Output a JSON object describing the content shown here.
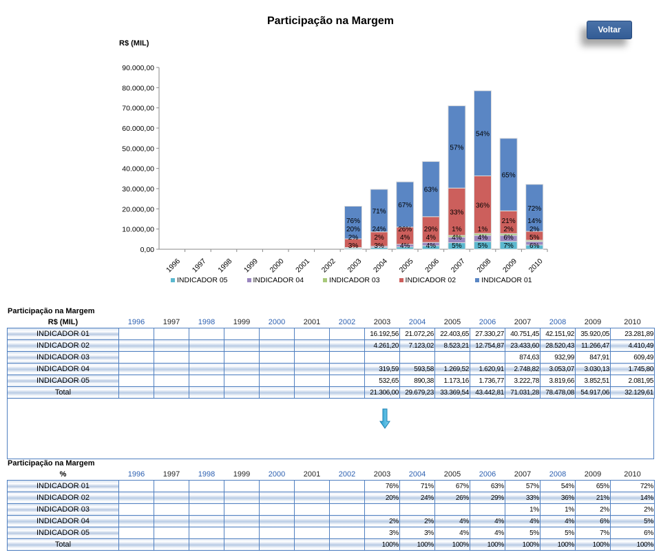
{
  "title": "Participação na Margem",
  "voltar": "Voltar",
  "chart_data": {
    "type": "bar",
    "stacked": true,
    "title": "Participação na Margem",
    "ylabel": "R$ (MIL)",
    "xlabel": "",
    "ylim": [
      0,
      90000
    ],
    "yticks": [
      "0,00",
      "10.000,00",
      "20.000,00",
      "30.000,00",
      "40.000,00",
      "50.000,00",
      "60.000,00",
      "70.000,00",
      "80.000,00",
      "90.000,00"
    ],
    "categories": [
      "1996",
      "1997",
      "1998",
      "1999",
      "2000",
      "2001",
      "2002",
      "2003",
      "2004",
      "2005",
      "2006",
      "2007",
      "2008",
      "2009",
      "2010"
    ],
    "legend_position": "bottom",
    "series": [
      {
        "name": "INDICADOR 05",
        "color": "#5bb8cf",
        "values": [
          0,
          0,
          0,
          0,
          0,
          0,
          0,
          532.65,
          890.38,
          1173.16,
          1736.77,
          3222.78,
          3819.66,
          3852.51,
          2081.95
        ],
        "labels": [
          "",
          "",
          "",
          "",
          "",
          "",
          "",
          "3%",
          "3%",
          "4%",
          "4%",
          "5%",
          "5%",
          "7%",
          "6%"
        ]
      },
      {
        "name": "INDICADOR 04",
        "color": "#9a86bf",
        "values": [
          0,
          0,
          0,
          0,
          0,
          0,
          0,
          319.59,
          593.58,
          1269.52,
          1620.91,
          2748.82,
          3053.07,
          3030.13,
          1745.8
        ],
        "labels": [
          "",
          "",
          "",
          "",
          "",
          "",
          "",
          "2%",
          "2%",
          "4%",
          "4%",
          "4%",
          "4%",
          "6%",
          "5%"
        ]
      },
      {
        "name": "INDICADOR 03",
        "color": "#a8c97a",
        "values": [
          0,
          0,
          0,
          0,
          0,
          0,
          0,
          0,
          0,
          0,
          0,
          874.63,
          932.99,
          847.91,
          609.49
        ],
        "labels": [
          "",
          "",
          "",
          "",
          "",
          "",
          "",
          "",
          "",
          "",
          "",
          "1%",
          "1%",
          "2%",
          "2%"
        ]
      },
      {
        "name": "INDICADOR 02",
        "color": "#cc5f5c",
        "values": [
          0,
          0,
          0,
          0,
          0,
          0,
          0,
          4261.2,
          7123.02,
          8523.21,
          12754.87,
          23433.6,
          28520.43,
          11266.47,
          4410.49
        ],
        "labels": [
          "",
          "",
          "",
          "",
          "",
          "",
          "",
          "20%",
          "24%",
          "26%",
          "29%",
          "33%",
          "36%",
          "21%",
          "14%"
        ]
      },
      {
        "name": "INDICADOR 01",
        "color": "#5a86c4",
        "values": [
          0,
          0,
          0,
          0,
          0,
          0,
          0,
          16192.56,
          21072.26,
          22403.65,
          27330.27,
          40751.45,
          42151.92,
          35920.05,
          23281.89
        ],
        "labels": [
          "",
          "",
          "",
          "",
          "",
          "",
          "",
          "76%",
          "71%",
          "67%",
          "63%",
          "57%",
          "54%",
          "65%",
          "72%"
        ]
      }
    ]
  },
  "table1": {
    "title": "Participação na Margem",
    "unit": "R$ (MIL)",
    "years": [
      "1996",
      "1997",
      "1998",
      "1999",
      "2000",
      "2001",
      "2002",
      "2003",
      "2004",
      "2005",
      "2006",
      "2007",
      "2008",
      "2009",
      "2010"
    ],
    "rows": [
      {
        "label": "INDICADOR 01",
        "values": [
          "",
          "",
          "",
          "",
          "",
          "",
          "",
          "16.192,56",
          "21.072,26",
          "22.403,65",
          "27.330,27",
          "40.751,45",
          "42.151,92",
          "35.920,05",
          "23.281,89"
        ]
      },
      {
        "label": "INDICADOR 02",
        "values": [
          "",
          "",
          "",
          "",
          "",
          "",
          "",
          "4.261,20",
          "7.123,02",
          "8.523,21",
          "12.754,87",
          "23.433,60",
          "28.520,43",
          "11.266,47",
          "4.410,49"
        ]
      },
      {
        "label": "INDICADOR 03",
        "values": [
          "",
          "",
          "",
          "",
          "",
          "",
          "",
          "",
          "",
          "",
          "",
          "874,63",
          "932,99",
          "847,91",
          "609,49"
        ]
      },
      {
        "label": "INDICADOR 04",
        "values": [
          "",
          "",
          "",
          "",
          "",
          "",
          "",
          "319,59",
          "593,58",
          "1.269,52",
          "1.620,91",
          "2.748,82",
          "3.053,07",
          "3.030,13",
          "1.745,80"
        ]
      },
      {
        "label": "INDICADOR 05",
        "values": [
          "",
          "",
          "",
          "",
          "",
          "",
          "",
          "532,65",
          "890,38",
          "1.173,16",
          "1.736,77",
          "3.222,78",
          "3.819,66",
          "3.852,51",
          "2.081,95"
        ]
      },
      {
        "label": "Total",
        "values": [
          "",
          "",
          "",
          "",
          "",
          "",
          "",
          "21.306,00",
          "29.679,23",
          "33.369,54",
          "43.442,81",
          "71.031,28",
          "78.478,08",
          "54.917,06",
          "32.129,61"
        ]
      }
    ]
  },
  "table2": {
    "title": "Participação na Margem",
    "unit": "%",
    "years": [
      "1996",
      "1997",
      "1998",
      "1999",
      "2000",
      "2001",
      "2002",
      "2003",
      "2004",
      "2005",
      "2006",
      "2007",
      "2008",
      "2009",
      "2010"
    ],
    "rows": [
      {
        "label": "INDICADOR 01",
        "values": [
          "",
          "",
          "",
          "",
          "",
          "",
          "",
          "76%",
          "71%",
          "67%",
          "63%",
          "57%",
          "54%",
          "65%",
          "72%"
        ]
      },
      {
        "label": "INDICADOR 02",
        "values": [
          "",
          "",
          "",
          "",
          "",
          "",
          "",
          "20%",
          "24%",
          "26%",
          "29%",
          "33%",
          "36%",
          "21%",
          "14%"
        ]
      },
      {
        "label": "INDICADOR 03",
        "values": [
          "",
          "",
          "",
          "",
          "",
          "",
          "",
          "",
          "",
          "",
          "",
          "1%",
          "1%",
          "2%",
          "2%"
        ]
      },
      {
        "label": "INDICADOR 04",
        "values": [
          "",
          "",
          "",
          "",
          "",
          "",
          "",
          "2%",
          "2%",
          "4%",
          "4%",
          "4%",
          "4%",
          "6%",
          "5%"
        ]
      },
      {
        "label": "INDICADOR 05",
        "values": [
          "",
          "",
          "",
          "",
          "",
          "",
          "",
          "3%",
          "3%",
          "4%",
          "4%",
          "5%",
          "5%",
          "7%",
          "6%"
        ]
      },
      {
        "label": "Total",
        "values": [
          "",
          "",
          "",
          "",
          "",
          "",
          "",
          "100%",
          "100%",
          "100%",
          "100%",
          "100%",
          "100%",
          "100%",
          "100%"
        ]
      }
    ]
  }
}
